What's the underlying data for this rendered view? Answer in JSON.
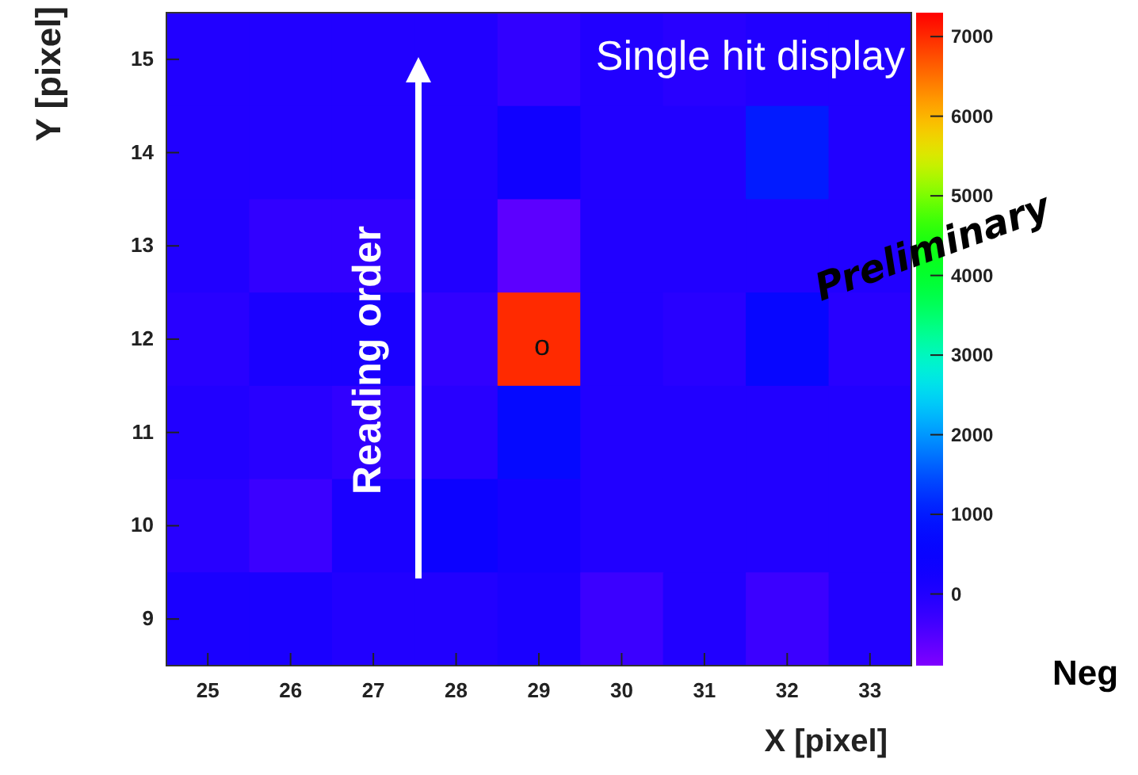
{
  "chart_data": {
    "type": "heatmap",
    "xlabel": "X [pixel]",
    "ylabel": "Y [pixel]",
    "categories": [
      "25",
      "26",
      "27",
      "28",
      "29",
      "30",
      "31",
      "32",
      "33"
    ],
    "y_categories": [
      "15",
      "14",
      "13",
      "12",
      "11",
      "10",
      "9"
    ],
    "cells": [
      [
        0,
        0,
        0,
        0,
        -200,
        0,
        -100,
        0,
        0
      ],
      [
        0,
        0,
        0,
        0,
        300,
        0,
        0,
        1000,
        0
      ],
      [
        0,
        -200,
        -200,
        0,
        -600,
        0,
        0,
        0,
        0
      ],
      [
        -100,
        100,
        100,
        -200,
        7000,
        0,
        -100,
        600,
        -100
      ],
      [
        0,
        -100,
        -200,
        -100,
        700,
        0,
        0,
        0,
        0
      ],
      [
        -100,
        -300,
        100,
        400,
        200,
        0,
        0,
        0,
        0
      ],
      [
        100,
        100,
        0,
        0,
        100,
        -300,
        0,
        -300,
        0
      ]
    ],
    "clim": [
      -900,
      7300
    ],
    "cticks": [
      0,
      1000,
      2000,
      3000,
      4000,
      5000,
      6000,
      7000
    ],
    "annotations": [
      "o",
      "Single hit display",
      "Reading order",
      "Preliminary",
      "Neg"
    ]
  }
}
